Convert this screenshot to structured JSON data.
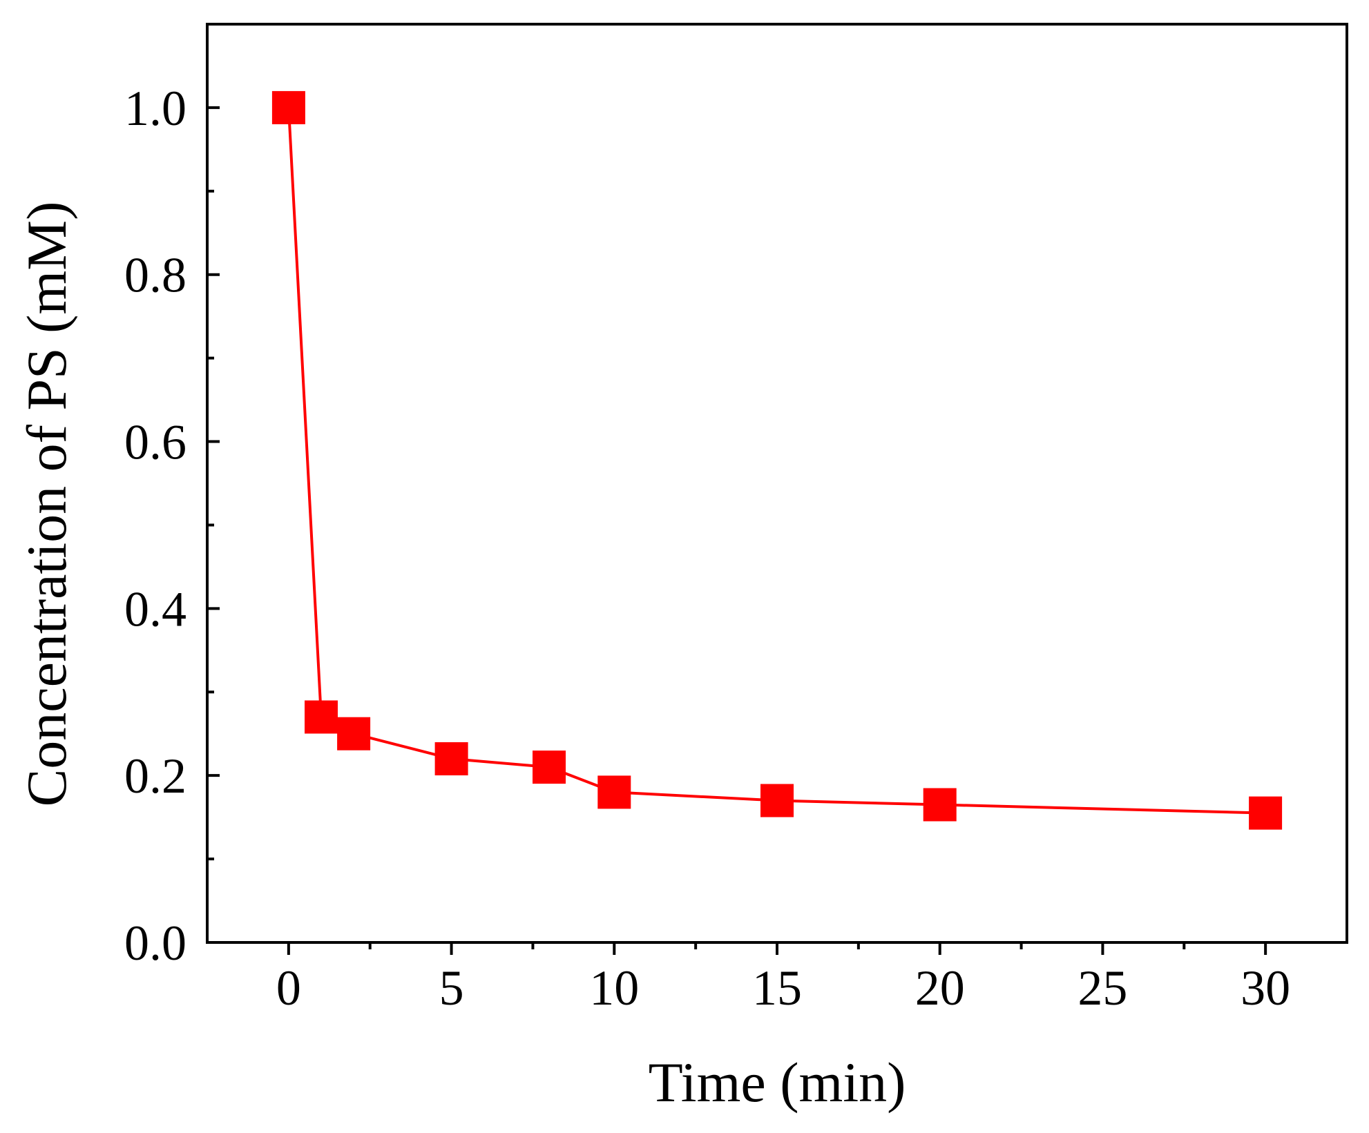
{
  "chart_data": {
    "type": "line",
    "title": "",
    "xlabel": "Time (min)",
    "ylabel": "Concentration of PS (mM)",
    "xlim": [
      -2.5,
      32.5
    ],
    "ylim": [
      0.0,
      1.1
    ],
    "x_ticks": [
      0,
      5,
      10,
      15,
      20,
      25,
      30
    ],
    "x_tick_labels": [
      "0",
      "5",
      "10",
      "15",
      "20",
      "25",
      "30"
    ],
    "y_ticks": [
      0.0,
      0.2,
      0.4,
      0.6,
      0.8,
      1.0
    ],
    "y_tick_labels": [
      "0.0",
      "0.2",
      "0.4",
      "0.6",
      "0.8",
      "1.0"
    ],
    "grid": false,
    "legend": "none",
    "marker": "square",
    "series": [
      {
        "color": "#ff0000",
        "x": [
          0,
          1,
          2,
          5,
          8,
          10,
          15,
          20,
          30
        ],
        "y": [
          1.0,
          0.27,
          0.25,
          0.22,
          0.21,
          0.18,
          0.17,
          0.165,
          0.155
        ]
      }
    ]
  }
}
